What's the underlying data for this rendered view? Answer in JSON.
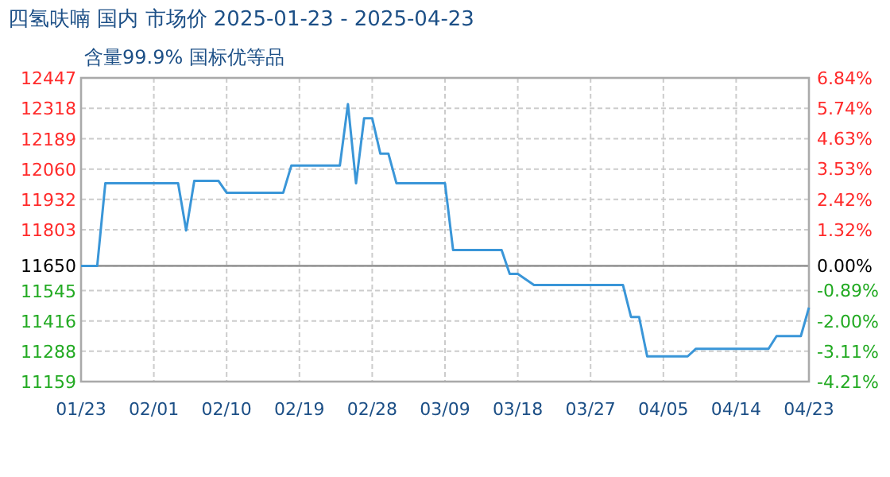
{
  "chart_data": {
    "type": "line",
    "title": "四氢呋喃 国内 市场价 2025-01-23 - 2025-04-23",
    "subtitle": "含量99.9% 国标优等品",
    "x": [
      "2025-01-23",
      "2025-01-25",
      "2025-01-26",
      "2025-02-04",
      "2025-02-05",
      "2025-02-06",
      "2025-02-09",
      "2025-02-10",
      "2025-02-17",
      "2025-02-18",
      "2025-02-24",
      "2025-02-25",
      "2025-02-26",
      "2025-02-27",
      "2025-02-28",
      "2025-03-01",
      "2025-03-02",
      "2025-03-03",
      "2025-03-09",
      "2025-03-10",
      "2025-03-16",
      "2025-03-17",
      "2025-03-18",
      "2025-03-20",
      "2025-03-31",
      "2025-04-01",
      "2025-04-02",
      "2025-04-03",
      "2025-04-08",
      "2025-04-09",
      "2025-04-18",
      "2025-04-19",
      "2025-04-22",
      "2025-04-23"
    ],
    "values": [
      11650,
      11650,
      12000,
      12000,
      11800,
      12010,
      12010,
      11960,
      11960,
      12075,
      12075,
      12336,
      12000,
      12276,
      12276,
      12126,
      12126,
      12000,
      12000,
      11717,
      11717,
      11616,
      11616,
      11569,
      11569,
      11433,
      11433,
      11266,
      11266,
      11298,
      11298,
      11352,
      11352,
      11473
    ],
    "color": "#3a96d8",
    "xlim": [
      "2025-01-23",
      "2025-04-23"
    ],
    "xticks": [
      {
        "value": "2025-01-23",
        "label": "01/23"
      },
      {
        "value": "2025-02-01",
        "label": "02/01"
      },
      {
        "value": "2025-02-10",
        "label": "02/10"
      },
      {
        "value": "2025-02-19",
        "label": "02/19"
      },
      {
        "value": "2025-02-28",
        "label": "02/28"
      },
      {
        "value": "2025-03-09",
        "label": "03/09"
      },
      {
        "value": "2025-03-18",
        "label": "03/18"
      },
      {
        "value": "2025-03-27",
        "label": "03/27"
      },
      {
        "value": "2025-04-05",
        "label": "04/05"
      },
      {
        "value": "2025-04-14",
        "label": "04/14"
      },
      {
        "value": "2025-04-23",
        "label": "04/23"
      }
    ],
    "ylim": [
      11159,
      12447
    ],
    "yticks": [
      12447,
      12318,
      12189,
      12060,
      11932,
      11803,
      11650,
      11545,
      11416,
      11288,
      11159
    ],
    "y2lim": [
      -4.21,
      6.84
    ],
    "y2ticks": [
      {
        "value": 6.84,
        "label": "6.84%"
      },
      {
        "value": 5.74,
        "label": "5.74%"
      },
      {
        "value": 4.63,
        "label": "4.63%"
      },
      {
        "value": 3.53,
        "label": "3.53%"
      },
      {
        "value": 2.42,
        "label": "2.42%"
      },
      {
        "value": 1.32,
        "label": "1.32%"
      },
      {
        "value": 0,
        "label": "0.00%"
      },
      {
        "value": -0.89,
        "label": "-0.89%"
      },
      {
        "value": -2.0,
        "label": "-2.00%"
      },
      {
        "value": -3.11,
        "label": "-3.11%"
      },
      {
        "value": -4.21,
        "label": "-4.21%"
      }
    ],
    "ref_lines": [
      {
        "axis": "y",
        "value": 11650,
        "color": "#999999"
      }
    ],
    "grid": true
  }
}
